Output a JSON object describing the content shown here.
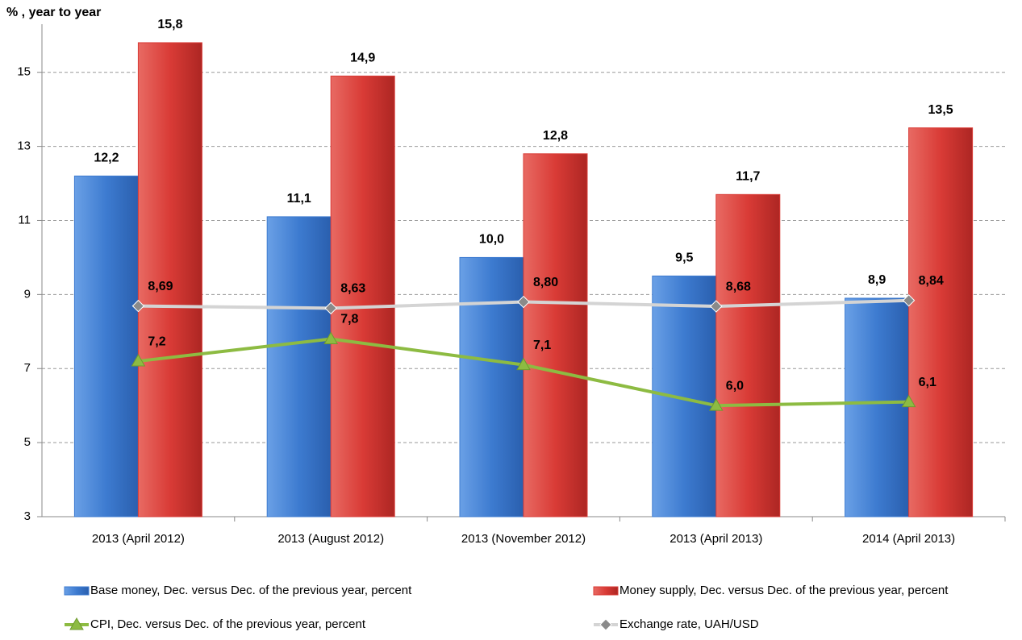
{
  "chart_data": {
    "type": "bar",
    "y_axis_label": "% , year to year",
    "categories": [
      "2013 (April 2012)",
      "2013 (August 2012)",
      "2013 (November 2012)",
      "2013 (April 2013)",
      "2014 (April 2013)"
    ],
    "series": [
      {
        "name": "Base money, Dec. versus Dec. of the previous year, percent",
        "type": "bar",
        "color": "#3d7bd0",
        "values": [
          12.2,
          11.1,
          10.0,
          9.5,
          8.9
        ],
        "value_labels": [
          "12,2",
          "11,1",
          "10,0",
          "9,5",
          "8,9"
        ]
      },
      {
        "name": "Money supply, Dec. versus Dec. of the previous year, percent",
        "type": "bar",
        "color": "#d93b36",
        "values": [
          15.8,
          14.9,
          12.8,
          11.7,
          13.5
        ],
        "value_labels": [
          "15,8",
          "14,9",
          "12,8",
          "11,7",
          "13,5"
        ]
      },
      {
        "name": "CPI, Dec. versus Dec. of the previous year, percent",
        "type": "line",
        "color": "#8dbb42",
        "marker": "triangle",
        "values": [
          7.2,
          7.8,
          7.1,
          6.0,
          6.1
        ],
        "value_labels": [
          "7,2",
          "7,8",
          "7,1",
          "6,0",
          "6,1"
        ]
      },
      {
        "name": "Exchange rate, UAH/USD",
        "type": "line",
        "color": "#d9d9d9",
        "marker": "diamond",
        "values": [
          8.69,
          8.63,
          8.8,
          8.68,
          8.84
        ],
        "value_labels": [
          "8,69",
          "8,63",
          "8,80",
          "8,68",
          "8,84"
        ]
      }
    ],
    "ylim": [
      3,
      16.3
    ],
    "yticks": [
      3,
      5,
      7,
      9,
      11,
      13,
      15
    ],
    "grid": true
  }
}
